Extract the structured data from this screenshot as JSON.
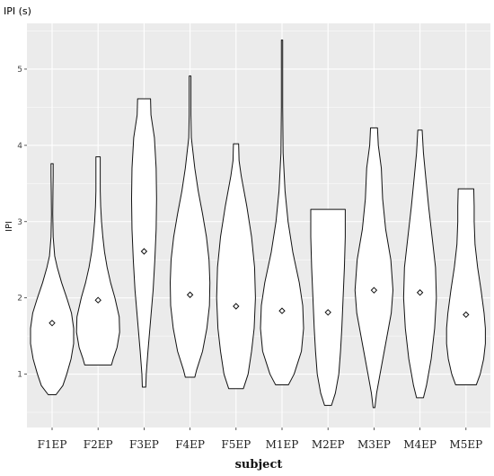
{
  "chart_data": {
    "type": "violin",
    "title": "IPI (s)",
    "xlabel": "subject",
    "ylabel": "IPI",
    "ylim": [
      0.3,
      5.6
    ],
    "yticks": [
      1,
      2,
      3,
      4,
      5
    ],
    "grid": true,
    "background": "#ebebeb",
    "grid_color": "#ffffff",
    "categories": [
      "F1EP",
      "F2EP",
      "F3EP",
      "F4EP",
      "F5EP",
      "M1EP",
      "M2EP",
      "M3EP",
      "M4EP",
      "M5EP"
    ],
    "series": [
      {
        "category": "F1EP",
        "mean": 1.67,
        "min": 0.73,
        "max": 3.76,
        "density": [
          [
            0.73,
            0.18
          ],
          [
            0.85,
            0.5
          ],
          [
            1.0,
            0.68
          ],
          [
            1.2,
            0.88
          ],
          [
            1.4,
            1.0
          ],
          [
            1.6,
            1.0
          ],
          [
            1.8,
            0.9
          ],
          [
            2.0,
            0.68
          ],
          [
            2.2,
            0.44
          ],
          [
            2.4,
            0.24
          ],
          [
            2.55,
            0.12
          ],
          [
            2.8,
            0.05
          ],
          [
            3.1,
            0.03
          ],
          [
            3.4,
            0.04
          ],
          [
            3.6,
            0.05
          ],
          [
            3.76,
            0.05
          ]
        ]
      },
      {
        "category": "F2EP",
        "mean": 1.97,
        "min": 1.12,
        "max": 3.85,
        "density": [
          [
            1.12,
            0.62
          ],
          [
            1.2,
            0.7
          ],
          [
            1.35,
            0.88
          ],
          [
            1.55,
            1.0
          ],
          [
            1.75,
            0.98
          ],
          [
            2.0,
            0.78
          ],
          [
            2.2,
            0.58
          ],
          [
            2.4,
            0.42
          ],
          [
            2.6,
            0.3
          ],
          [
            2.8,
            0.22
          ],
          [
            3.0,
            0.16
          ],
          [
            3.2,
            0.12
          ],
          [
            3.4,
            0.1
          ],
          [
            3.6,
            0.1
          ],
          [
            3.85,
            0.1
          ]
        ]
      },
      {
        "category": "F3EP",
        "mean": 2.61,
        "min": 0.83,
        "max": 4.61,
        "density": [
          [
            0.83,
            0.08
          ],
          [
            1.0,
            0.1
          ],
          [
            1.3,
            0.18
          ],
          [
            1.7,
            0.3
          ],
          [
            2.1,
            0.42
          ],
          [
            2.5,
            0.5
          ],
          [
            2.9,
            0.56
          ],
          [
            3.3,
            0.58
          ],
          [
            3.7,
            0.56
          ],
          [
            4.1,
            0.48
          ],
          [
            4.4,
            0.32
          ],
          [
            4.61,
            0.3
          ]
        ]
      },
      {
        "category": "F4EP",
        "mean": 2.04,
        "min": 0.96,
        "max": 4.91,
        "density": [
          [
            0.96,
            0.22
          ],
          [
            1.05,
            0.3
          ],
          [
            1.3,
            0.58
          ],
          [
            1.6,
            0.78
          ],
          [
            1.9,
            0.9
          ],
          [
            2.2,
            0.92
          ],
          [
            2.5,
            0.88
          ],
          [
            2.8,
            0.76
          ],
          [
            3.1,
            0.58
          ],
          [
            3.4,
            0.38
          ],
          [
            3.7,
            0.22
          ],
          [
            3.9,
            0.14
          ],
          [
            4.1,
            0.06
          ],
          [
            4.4,
            0.04
          ],
          [
            4.7,
            0.04
          ],
          [
            4.91,
            0.04
          ]
        ]
      },
      {
        "category": "F5EP",
        "mean": 1.89,
        "min": 0.81,
        "max": 4.02,
        "density": [
          [
            0.81,
            0.34
          ],
          [
            1.0,
            0.56
          ],
          [
            1.3,
            0.72
          ],
          [
            1.6,
            0.84
          ],
          [
            2.0,
            0.9
          ],
          [
            2.4,
            0.86
          ],
          [
            2.8,
            0.72
          ],
          [
            3.2,
            0.5
          ],
          [
            3.6,
            0.24
          ],
          [
            3.8,
            0.14
          ],
          [
            4.02,
            0.12
          ]
        ]
      },
      {
        "category": "M1EP",
        "mean": 1.83,
        "min": 0.86,
        "max": 5.38,
        "density": [
          [
            0.86,
            0.3
          ],
          [
            1.0,
            0.56
          ],
          [
            1.3,
            0.9
          ],
          [
            1.6,
            1.0
          ],
          [
            1.9,
            0.96
          ],
          [
            2.2,
            0.8
          ],
          [
            2.6,
            0.5
          ],
          [
            3.0,
            0.28
          ],
          [
            3.4,
            0.14
          ],
          [
            3.9,
            0.05
          ],
          [
            4.5,
            0.03
          ],
          [
            5.0,
            0.03
          ],
          [
            5.38,
            0.03
          ]
        ]
      },
      {
        "category": "M2EP",
        "mean": 1.81,
        "min": 0.59,
        "max": 3.16,
        "density": [
          [
            0.59,
            0.16
          ],
          [
            0.75,
            0.34
          ],
          [
            1.0,
            0.5
          ],
          [
            1.3,
            0.58
          ],
          [
            1.6,
            0.64
          ],
          [
            2.0,
            0.7
          ],
          [
            2.4,
            0.76
          ],
          [
            2.8,
            0.8
          ],
          [
            3.0,
            0.8
          ],
          [
            3.16,
            0.8
          ]
        ]
      },
      {
        "category": "M3EP",
        "mean": 2.1,
        "min": 0.56,
        "max": 4.23,
        "density": [
          [
            0.56,
            0.04
          ],
          [
            0.75,
            0.12
          ],
          [
            1.0,
            0.28
          ],
          [
            1.4,
            0.54
          ],
          [
            1.8,
            0.8
          ],
          [
            2.1,
            0.88
          ],
          [
            2.5,
            0.78
          ],
          [
            2.9,
            0.54
          ],
          [
            3.3,
            0.4
          ],
          [
            3.7,
            0.34
          ],
          [
            4.0,
            0.2
          ],
          [
            4.23,
            0.16
          ]
        ]
      },
      {
        "category": "M4EP",
        "mean": 2.07,
        "min": 0.69,
        "max": 4.2,
        "density": [
          [
            0.69,
            0.16
          ],
          [
            0.85,
            0.3
          ],
          [
            1.2,
            0.52
          ],
          [
            1.6,
            0.68
          ],
          [
            2.0,
            0.76
          ],
          [
            2.4,
            0.72
          ],
          [
            2.8,
            0.56
          ],
          [
            3.2,
            0.4
          ],
          [
            3.6,
            0.26
          ],
          [
            3.9,
            0.16
          ],
          [
            4.2,
            0.1
          ]
        ]
      },
      {
        "category": "M5EP",
        "mean": 1.78,
        "min": 0.86,
        "max": 3.43,
        "density": [
          [
            0.86,
            0.48
          ],
          [
            1.0,
            0.66
          ],
          [
            1.2,
            0.82
          ],
          [
            1.4,
            0.9
          ],
          [
            1.6,
            0.9
          ],
          [
            1.8,
            0.84
          ],
          [
            2.1,
            0.7
          ],
          [
            2.4,
            0.54
          ],
          [
            2.7,
            0.42
          ],
          [
            3.0,
            0.38
          ],
          [
            3.2,
            0.38
          ],
          [
            3.43,
            0.36
          ]
        ]
      }
    ]
  }
}
